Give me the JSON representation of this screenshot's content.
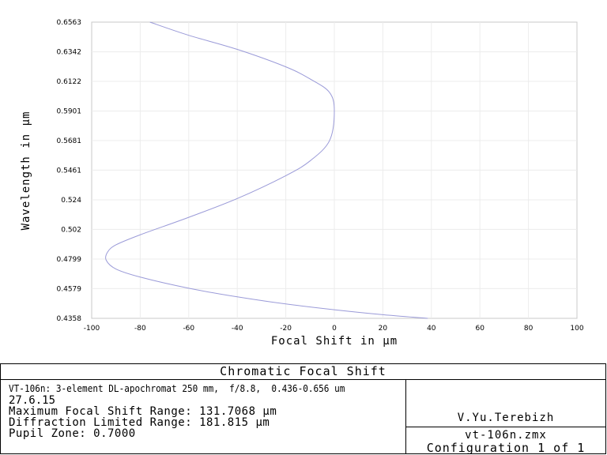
{
  "chart_data": {
    "type": "line",
    "title": "Chromatic Focal Shift",
    "xlabel": "Focal Shift in µm",
    "ylabel": "Wavelength in µm",
    "xlim": [
      -100,
      100
    ],
    "ylim": [
      0.4358,
      0.6563
    ],
    "x_ticks": [
      "-100",
      "-80",
      "-60",
      "-40",
      "-20",
      "0",
      "20",
      "40",
      "60",
      "80",
      "100"
    ],
    "y_ticks": [
      "0.4358",
      "0.4579",
      "0.4799",
      "0.502",
      "0.524",
      "0.5461",
      "0.5681",
      "0.5901",
      "0.6122",
      "0.6342",
      "0.6563"
    ],
    "grid": true,
    "series_color": "#9a9ad8",
    "series": [
      {
        "x": [
          38.5,
          20,
          0,
          -20,
          -40,
          -60,
          -80,
          -90,
          -94,
          -93.5,
          -90,
          -80,
          -60,
          -40,
          -20,
          -10,
          -2,
          0,
          -2,
          -10,
          -20,
          -40,
          -60,
          -76
        ],
        "y": [
          0.4358,
          0.4385,
          0.4422,
          0.4465,
          0.4518,
          0.4582,
          0.4665,
          0.4725,
          0.479,
          0.485,
          0.4905,
          0.498,
          0.511,
          0.525,
          0.542,
          0.553,
          0.568,
          0.5901,
          0.604,
          0.614,
          0.623,
          0.636,
          0.6465,
          0.6563
        ]
      }
    ]
  },
  "info": {
    "title": "Chromatic Focal Shift",
    "description": "VT-106n: 3-element DL-apochromat 250 mm,  f/8.8,  0.436-0.656 um",
    "date": "27.6.15",
    "max_focal_shift": "Maximum Focal Shift Range: 131.7068 µm",
    "diffraction_limited": "Diffraction Limited Range: 181.815 µm",
    "pupil_zone": "Pupil Zone: 0.7000",
    "author": "V.Yu.Terebizh",
    "file": "vt-106n.zmx",
    "configuration": "Configuration 1 of 1"
  }
}
